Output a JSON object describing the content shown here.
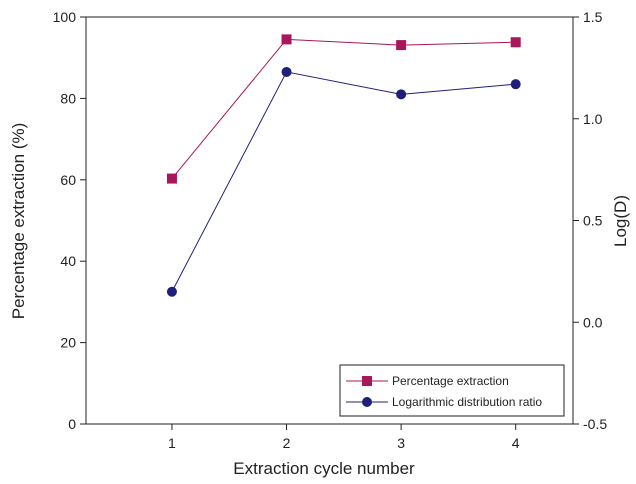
{
  "chart_data": {
    "type": "line",
    "x": [
      1,
      2,
      3,
      4
    ],
    "xlabel": "Extraction cycle number",
    "ylabel": "Percentage extraction (%)",
    "y2label": "Log(D)",
    "xlim": [
      0.25,
      4.5
    ],
    "ylim": [
      0,
      100
    ],
    "y2lim": [
      -0.5,
      1.5
    ],
    "x_ticks": [
      "1",
      "2",
      "3",
      "4"
    ],
    "y_ticks": [
      "0",
      "20",
      "40",
      "60",
      "80",
      "100"
    ],
    "y2_ticks": [
      "-0.5",
      "0.0",
      "0.5",
      "1.0",
      "1.5"
    ],
    "grid": false,
    "legend_position": "bottom-right",
    "series": [
      {
        "name": "Percentage extraction",
        "axis": "left",
        "marker": "square",
        "color": "#a8175a",
        "values": [
          60.3,
          94.5,
          93.1,
          93.8
        ]
      },
      {
        "name": "Logarithmic distribution ratio",
        "axis": "right",
        "marker": "circle",
        "color": "#1f1f7a",
        "values": [
          0.15,
          1.23,
          1.12,
          1.17
        ]
      }
    ]
  }
}
